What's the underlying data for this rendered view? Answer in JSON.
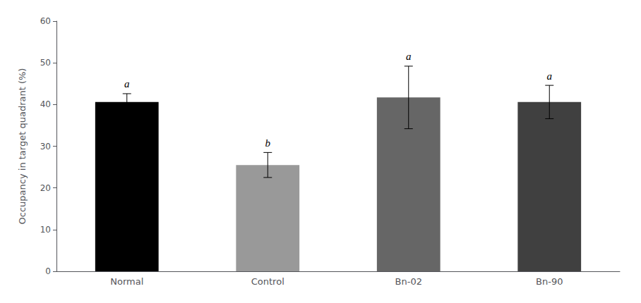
{
  "chart_data": {
    "type": "bar",
    "categories": [
      "Normal",
      "Control",
      "Bn-02",
      "Bn-90"
    ],
    "values": [
      40.6,
      25.5,
      41.7,
      40.6
    ],
    "errors": [
      2.0,
      3.0,
      7.5,
      4.0
    ],
    "colors": [
      "#000000",
      "#999999",
      "#666666",
      "#404040"
    ],
    "annotations": [
      "a",
      "b",
      "a",
      "a"
    ],
    "ylabel": "Occupancy in target quadrant (%)",
    "ylim": [
      0,
      60
    ],
    "yticks": [
      0,
      10,
      20,
      30,
      40,
      50,
      60
    ],
    "grid": false
  }
}
